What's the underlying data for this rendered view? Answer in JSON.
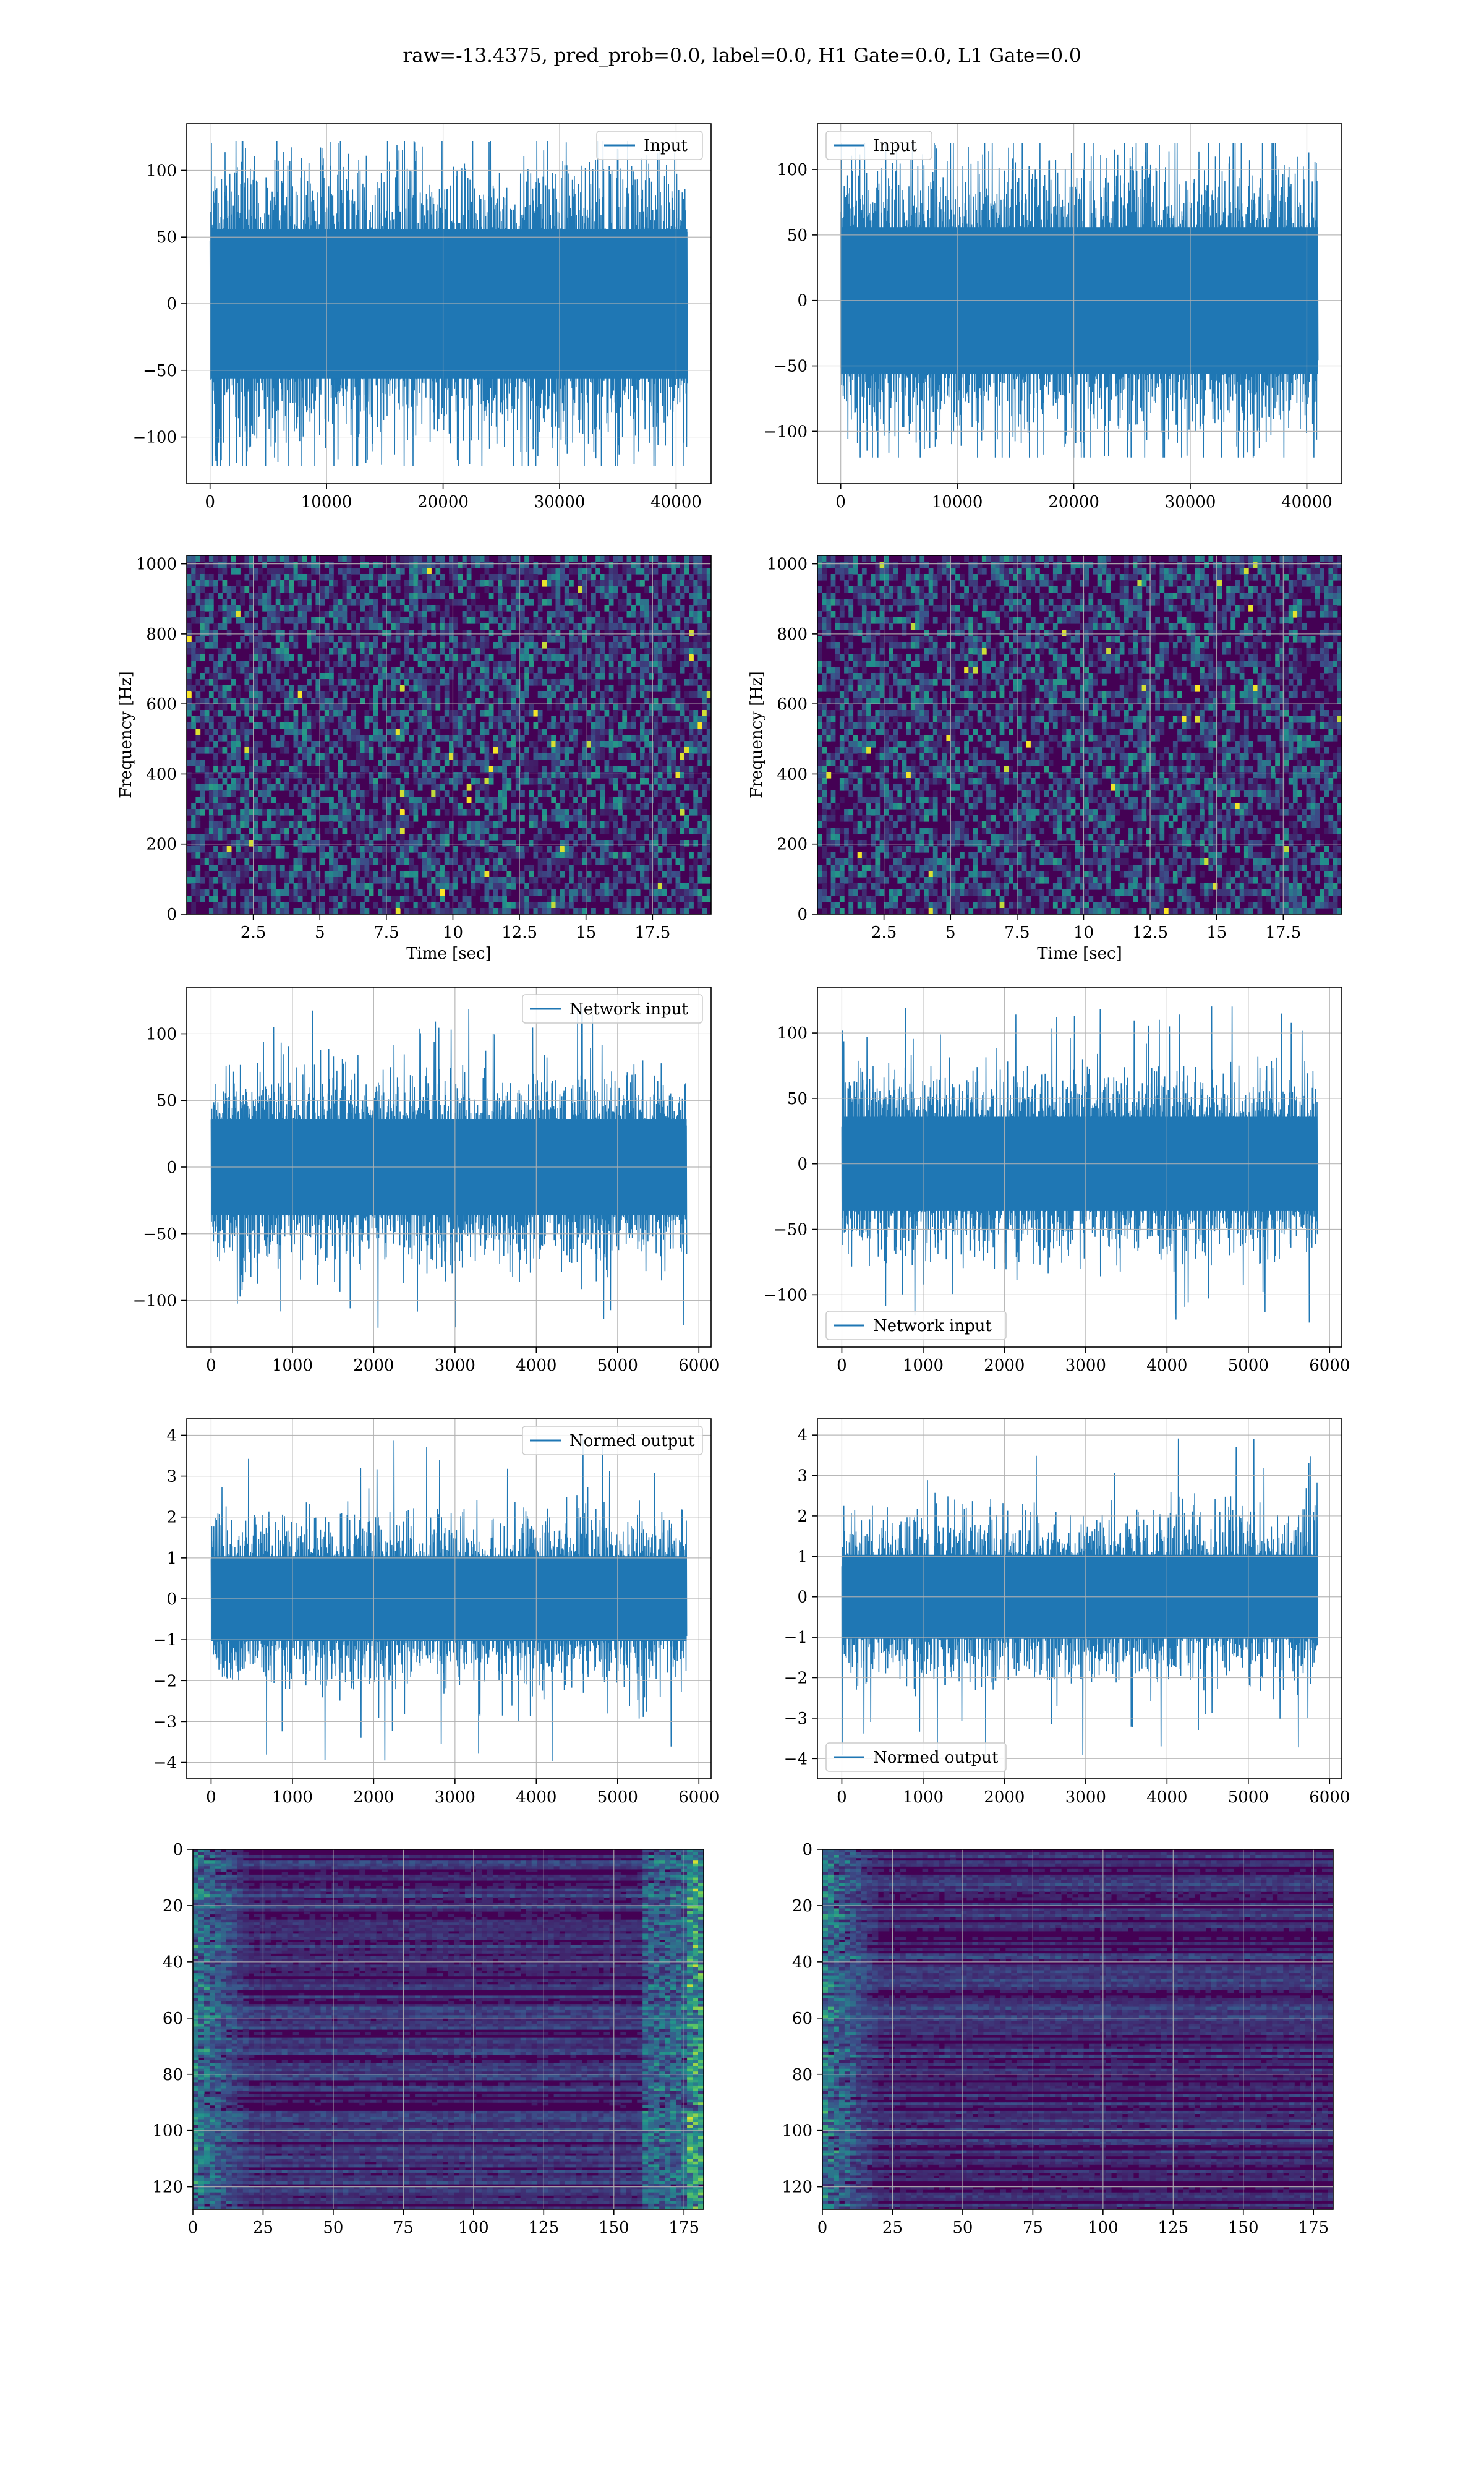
{
  "figure": {
    "suptitle": "raw=-13.4375, pred_prob=0.0, label=0.0, H1 Gate=0.0, L1 Gate=0.0",
    "colors": {
      "line": "#1f77b4",
      "grid": "#b0b0b0",
      "viridis_low": "#440154",
      "viridis_mid": "#21918c",
      "viridis_high": "#fde725"
    }
  },
  "chart_data": [
    {
      "type": "line",
      "panel": "row1-left",
      "series": [
        {
          "name": "Input",
          "note": "dense noise, amplitude ~ ±70 with peaks ±120"
        }
      ],
      "xlim": [
        -2000,
        43000
      ],
      "ylim": [
        -135,
        135
      ],
      "xticks": [
        0,
        10000,
        20000,
        30000,
        40000
      ],
      "yticks": [
        -100,
        -50,
        0,
        50,
        100
      ],
      "x_extent": [
        0,
        40960
      ],
      "envelope": 70,
      "peak": 122,
      "legend_loc": "upper right",
      "grid": true
    },
    {
      "type": "line",
      "panel": "row1-right",
      "series": [
        {
          "name": "Input",
          "note": "dense noise, amplitude ~ ±70 with peaks ±120"
        }
      ],
      "xlim": [
        -2000,
        43000
      ],
      "ylim": [
        -140,
        135
      ],
      "xticks": [
        0,
        10000,
        20000,
        30000,
        40000
      ],
      "yticks": [
        -100,
        -50,
        0,
        50,
        100
      ],
      "x_extent": [
        0,
        40960
      ],
      "envelope": 70,
      "peak": 120,
      "legend_loc": "upper left",
      "grid": true
    },
    {
      "type": "heatmap",
      "panel": "row2-left",
      "xlabel": "Time [sec]",
      "ylabel": "Frequency [Hz]",
      "xlim": [
        0,
        19.7
      ],
      "ylim": [
        0,
        1024
      ],
      "xticks": [
        2.5,
        5.0,
        7.5,
        10.0,
        12.5,
        15.0,
        17.5
      ],
      "yticks": [
        0,
        200,
        400,
        600,
        800,
        1000
      ],
      "colormap": "viridis",
      "grid": true
    },
    {
      "type": "heatmap",
      "panel": "row2-right",
      "xlabel": "Time [sec]",
      "ylabel": "Frequency [Hz]",
      "xlim": [
        0,
        19.7
      ],
      "ylim": [
        0,
        1024
      ],
      "xticks": [
        2.5,
        5.0,
        7.5,
        10.0,
        12.5,
        15.0,
        17.5
      ],
      "yticks": [
        0,
        200,
        400,
        600,
        800,
        1000
      ],
      "colormap": "viridis",
      "grid": true
    },
    {
      "type": "line",
      "panel": "row3-left",
      "series": [
        {
          "name": "Network input"
        }
      ],
      "xlim": [
        -300,
        6150
      ],
      "ylim": [
        -135,
        135
      ],
      "xticks": [
        0,
        1000,
        2000,
        3000,
        4000,
        5000,
        6000
      ],
      "yticks": [
        -100,
        -50,
        0,
        50,
        100
      ],
      "x_extent": [
        0,
        5850
      ],
      "envelope": 45,
      "peak": 122,
      "legend_loc": "upper right",
      "grid": true
    },
    {
      "type": "line",
      "panel": "row3-right",
      "series": [
        {
          "name": "Network input"
        }
      ],
      "xlim": [
        -300,
        6150
      ],
      "ylim": [
        -140,
        135
      ],
      "xticks": [
        0,
        1000,
        2000,
        3000,
        4000,
        5000,
        6000
      ],
      "yticks": [
        -100,
        -50,
        0,
        50,
        100
      ],
      "x_extent": [
        0,
        5850
      ],
      "envelope": 45,
      "peak": 122,
      "legend_loc": "lower left",
      "grid": true
    },
    {
      "type": "line",
      "panel": "row4-left",
      "series": [
        {
          "name": "Normed output"
        }
      ],
      "xlim": [
        -300,
        6150
      ],
      "ylim": [
        -4.4,
        4.4
      ],
      "xticks": [
        0,
        1000,
        2000,
        3000,
        4000,
        5000,
        6000
      ],
      "yticks": [
        -4,
        -3,
        -2,
        -1,
        0,
        1,
        2,
        3,
        4
      ],
      "x_extent": [
        0,
        5850
      ],
      "envelope": 1.3,
      "peak": 4.0,
      "legend_loc": "upper right",
      "grid": true
    },
    {
      "type": "line",
      "panel": "row4-right",
      "series": [
        {
          "name": "Normed output"
        }
      ],
      "xlim": [
        -300,
        6150
      ],
      "ylim": [
        -4.5,
        4.4
      ],
      "xticks": [
        0,
        1000,
        2000,
        3000,
        4000,
        5000,
        6000
      ],
      "yticks": [
        -4,
        -3,
        -2,
        -1,
        0,
        1,
        2,
        3,
        4
      ],
      "x_extent": [
        0,
        5850
      ],
      "envelope": 1.3,
      "peak": 4.0,
      "legend_loc": "lower left",
      "grid": true
    },
    {
      "type": "heatmap",
      "panel": "row5-left",
      "xlim": [
        0,
        182
      ],
      "ylim": [
        128,
        0
      ],
      "xticks": [
        0,
        25,
        50,
        75,
        100,
        125,
        150,
        175
      ],
      "yticks": [
        0,
        20,
        40,
        60,
        80,
        100,
        120
      ],
      "colormap": "viridis",
      "grid": true
    },
    {
      "type": "heatmap",
      "panel": "row5-right",
      "xlim": [
        0,
        182
      ],
      "ylim": [
        128,
        0
      ],
      "xticks": [
        0,
        25,
        50,
        75,
        100,
        125,
        150,
        175
      ],
      "yticks": [
        0,
        20,
        40,
        60,
        80,
        100,
        120
      ],
      "colormap": "viridis",
      "grid": true
    }
  ]
}
